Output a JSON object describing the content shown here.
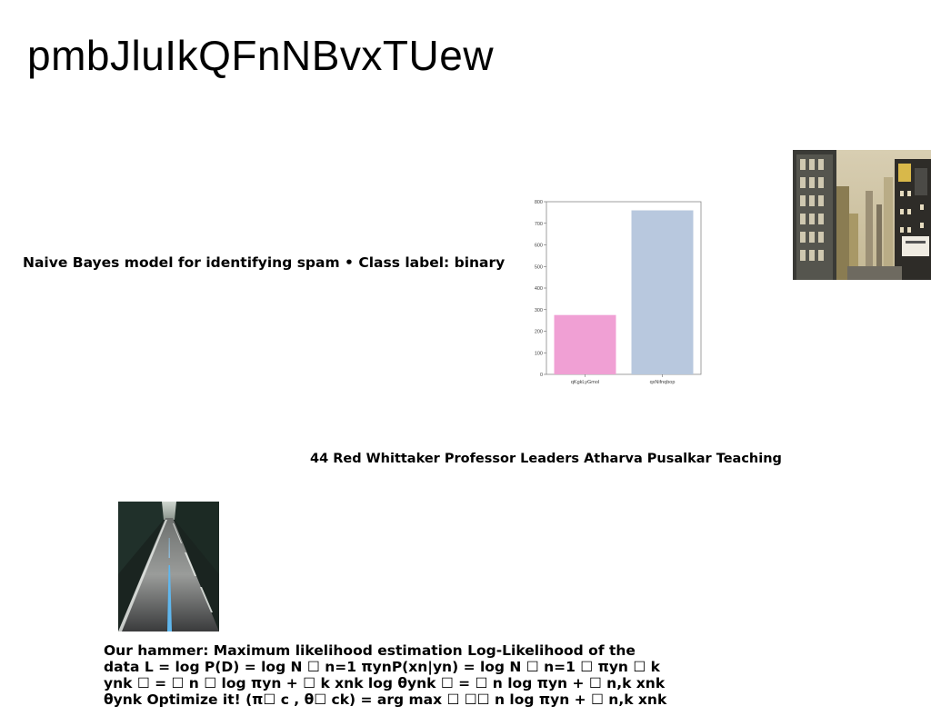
{
  "slide": {
    "title": "pmbJluIkQFnNBvxTUew",
    "naive_bayes_line": "Naive Bayes model for identifying spam • Class label: binary",
    "credit_line": "44 Red Whittaker Professor Leaders Atharva Pusalkar Teaching",
    "mle_lines": [
      "Our hammer: Maximum likelihood estimation Log-Likelihood of the",
      "data L = log P(D) = log N ☐ n=1 πynP(xn|yn) = log N ☐ n=1 ☐ πyn ☐ k",
      "ynk ☐ = ☐ n ☐ log πyn + ☐ k xnk log θynk ☐ = ☐ n log πyn + ☐ n,k xnk",
      "θynk Optimize it! (π☐ c , θ☐ ck) = arg max ☐ ☐☐ n log πyn + ☐ n,k xnk"
    ]
  },
  "images": {
    "city": "city-street-photo",
    "road": "road-photo"
  },
  "chart_data": {
    "type": "bar",
    "categories": [
      "qKgkLyGmol",
      "qxNifnqbop"
    ],
    "values": [
      275,
      760
    ],
    "colors": [
      "#f0a0d4",
      "#b8c8de"
    ],
    "ylim": [
      0,
      800
    ],
    "yticks": [
      0,
      100,
      200,
      300,
      400,
      500,
      600,
      700,
      800
    ],
    "title": "",
    "xlabel": "",
    "ylabel": "",
    "grid": false
  }
}
